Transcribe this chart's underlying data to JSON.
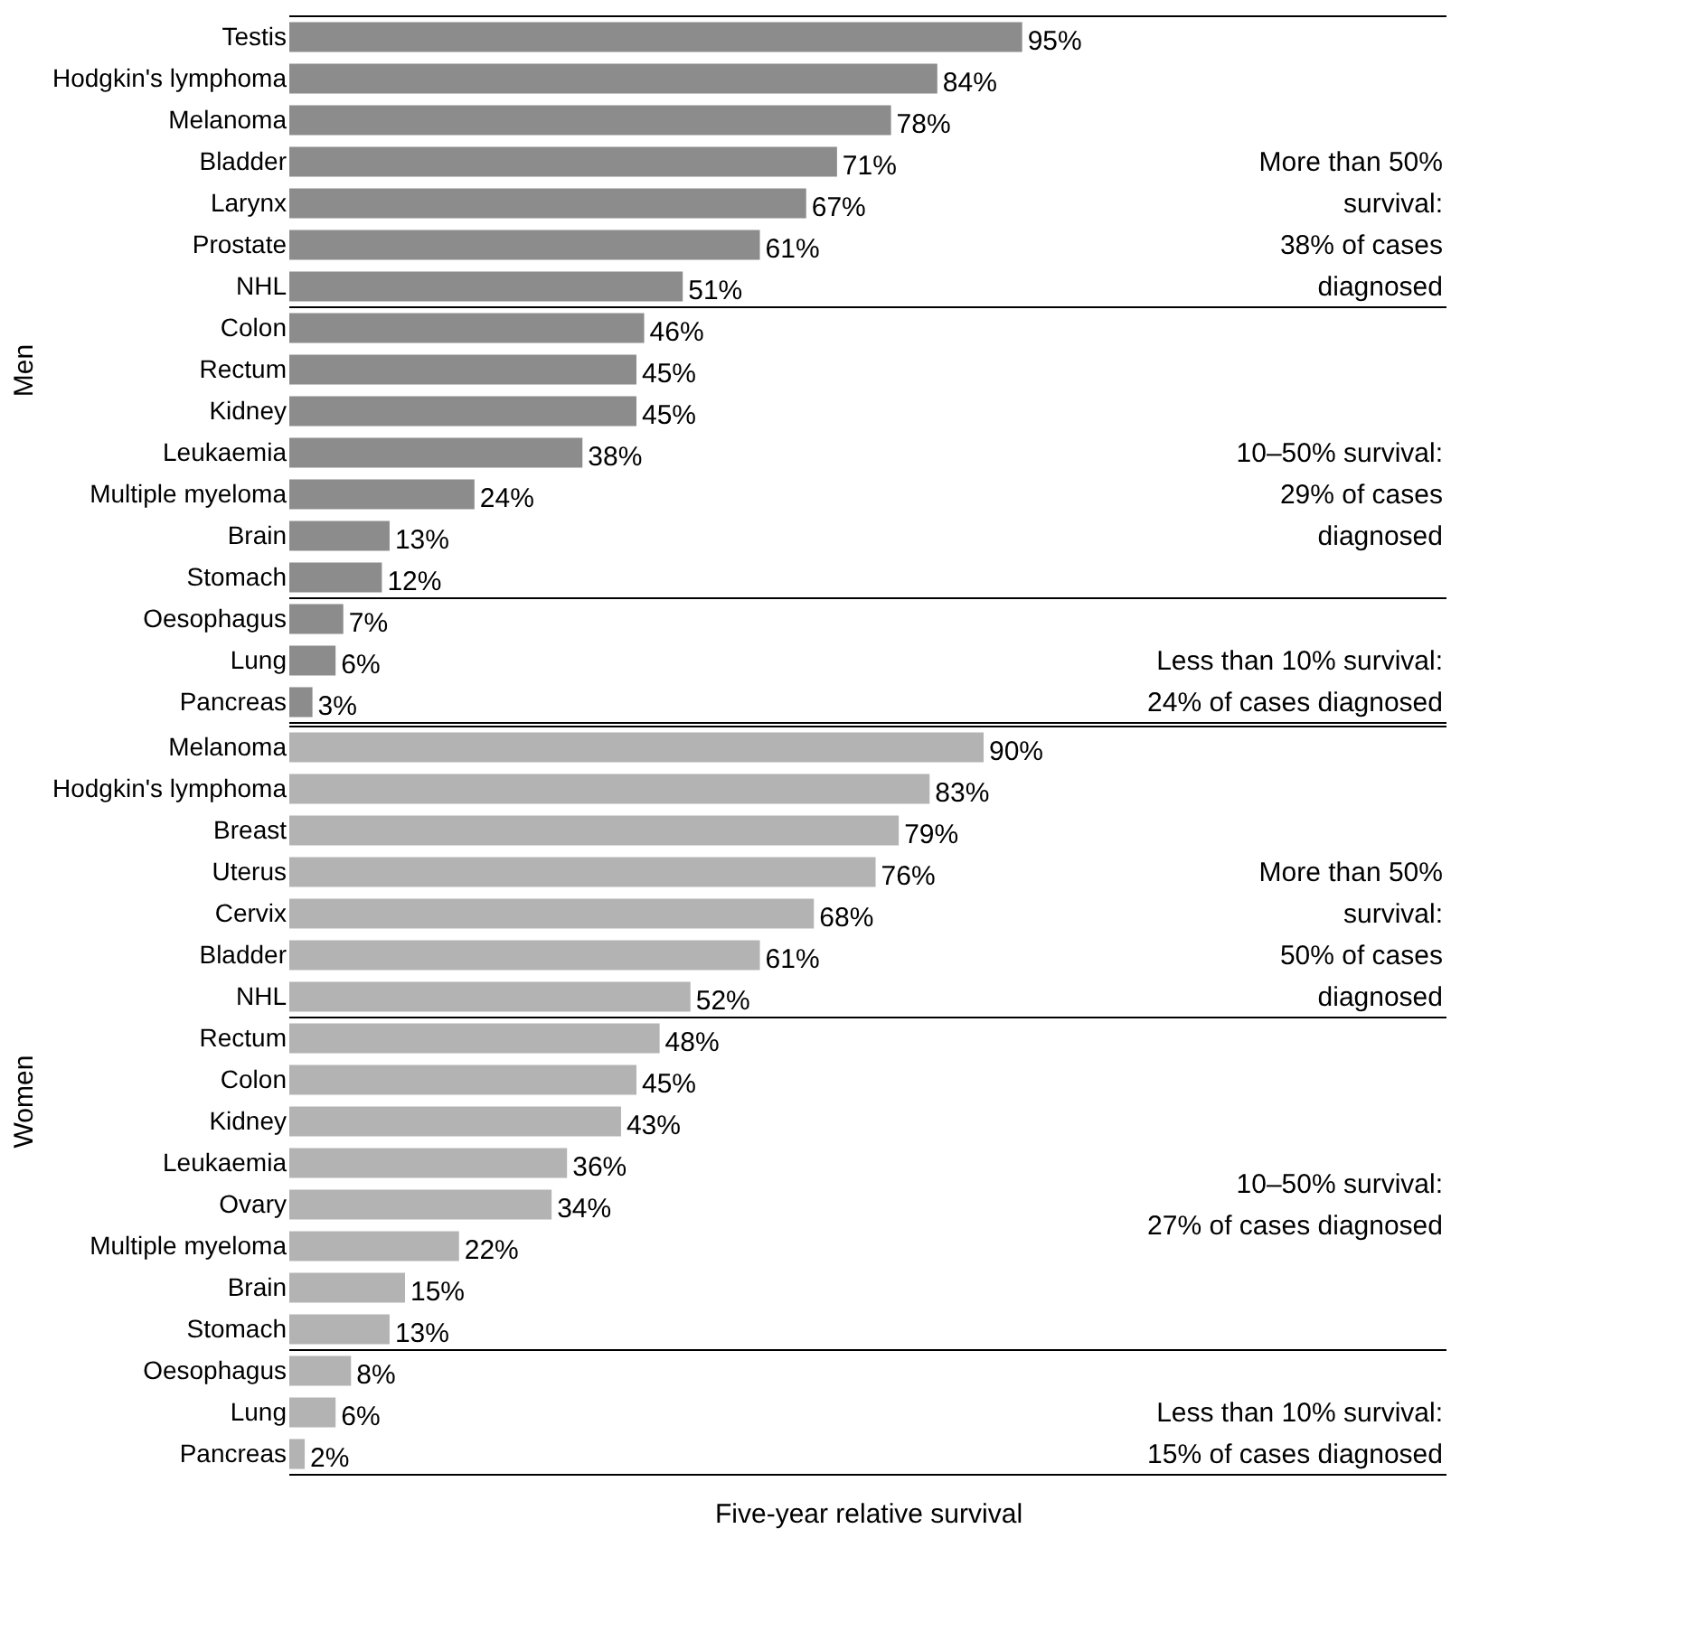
{
  "chart_data": [
    {
      "type": "bar",
      "orientation": "horizontal",
      "ylabel": "Men",
      "tick_labels": "y",
      "xlim": [
        0,
        150
      ],
      "color": "#8c8c8c",
      "categories": [
        "Testis",
        "Hodgkin's lymphoma",
        "Melanoma",
        "Bladder",
        "Larynx",
        "Prostate",
        "NHL",
        "Colon",
        "Rectum",
        "Kidney",
        "Leukaemia",
        "Multiple myeloma",
        "Brain",
        "Stomach",
        "Oesophagus",
        "Lung",
        "Pancreas"
      ],
      "values": [
        95,
        84,
        78,
        71,
        67,
        61,
        51,
        46,
        45,
        45,
        38,
        24,
        13,
        12,
        7,
        6,
        3
      ],
      "value_labels": [
        "95%",
        "84%",
        "78%",
        "71%",
        "67%",
        "61%",
        "51%",
        "46%",
        "45%",
        "45%",
        "38%",
        "24%",
        "13%",
        "12%",
        "7%",
        "6%",
        "3%"
      ],
      "bands": [
        {
          "axis": "y",
          "from": "Testis",
          "to": "NHL",
          "label": "More than 50%\nsurvival:\n38% of cases\ndiagnosed",
          "color": "#ffffff"
        },
        {
          "axis": "y",
          "from": "Colon",
          "to": "Stomach",
          "label": "10–50% survival:\n29% of cases\ndiagnosed",
          "color": "#ffffff"
        },
        {
          "axis": "y",
          "from": "Oesophagus",
          "to": "Pancreas",
          "label": "Less than 10% survival:\n24% of cases diagnosed",
          "color": "#ffffff"
        }
      ]
    },
    {
      "type": "bar",
      "orientation": "horizontal",
      "ylabel": "Women",
      "xlabel": "Five-year relative survival",
      "tick_labels": "y",
      "xlim": [
        0,
        150
      ],
      "color": "#b3b3b3",
      "categories": [
        "Melanoma",
        "Hodgkin's lymphoma",
        "Breast",
        "Uterus",
        "Cervix",
        "Bladder",
        "NHL",
        "Rectum",
        "Colon",
        "Kidney",
        "Leukaemia",
        "Ovary",
        "Multiple myeloma",
        "Brain",
        "Stomach",
        "Oesophagus",
        "Lung",
        "Pancreas"
      ],
      "values": [
        90,
        83,
        79,
        76,
        68,
        61,
        52,
        48,
        45,
        43,
        36,
        34,
        22,
        15,
        13,
        8,
        6,
        2
      ],
      "value_labels": [
        "90%",
        "83%",
        "79%",
        "76%",
        "68%",
        "61%",
        "52%",
        "48%",
        "45%",
        "43%",
        "36%",
        "34%",
        "22%",
        "15%",
        "13%",
        "8%",
        "6%",
        "2%"
      ],
      "bands": [
        {
          "axis": "y",
          "from": "Melanoma",
          "to": "NHL",
          "label": "More than 50%\nsurvival:\n50% of cases\ndiagnosed",
          "color": "#ffffff"
        },
        {
          "axis": "y",
          "from": "Rectum",
          "to": "Stomach",
          "label": "10–50% survival:\n27% of cases diagnosed",
          "color": "#ffffff"
        },
        {
          "axis": "y",
          "from": "Oesophagus",
          "to": "Pancreas",
          "label": "Less than 10% survival:\n15% of cases diagnosed",
          "color": "#ffffff"
        }
      ]
    }
  ]
}
